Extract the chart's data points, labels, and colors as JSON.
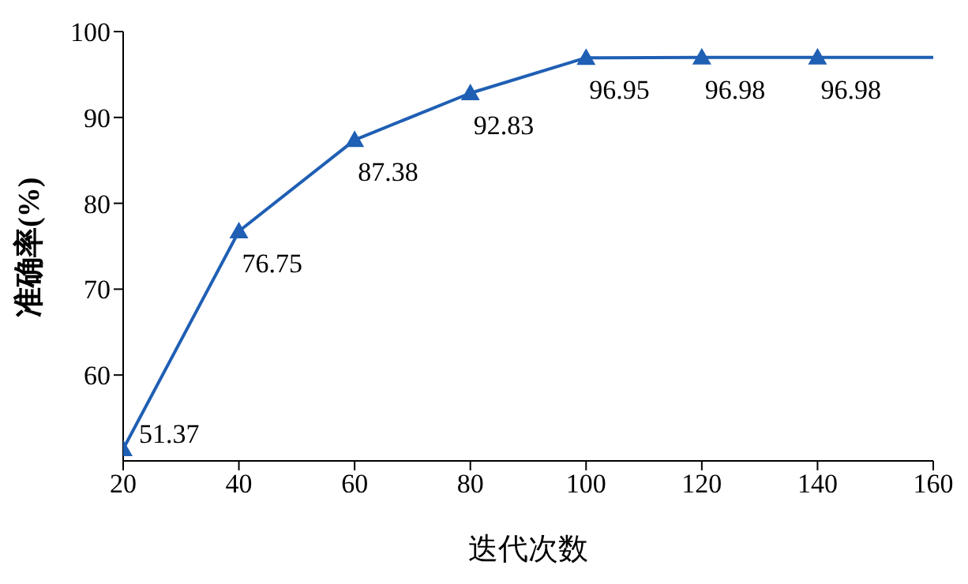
{
  "chart_data": {
    "type": "line",
    "xlabel": "迭代次数",
    "ylabel": "准确率(%)",
    "x": [
      20,
      40,
      60,
      80,
      100,
      120,
      140,
      160
    ],
    "series": [
      {
        "color": "#1f5fb4",
        "values": [
          51.37,
          76.75,
          87.38,
          92.83,
          96.95,
          96.98,
          96.98,
          96.98
        ],
        "value_labels": [
          "51.37",
          "76.75",
          "87.38",
          "92.83",
          "96.95",
          "96.98",
          "96.98",
          null
        ]
      }
    ],
    "xlim": [
      20,
      160
    ],
    "xticks": [
      20,
      40,
      60,
      80,
      100,
      120,
      140,
      160
    ],
    "ylim": [
      50,
      100
    ],
    "yticks": [
      60,
      70,
      80,
      90,
      100
    ],
    "marker": "triangle",
    "line_style": "solid",
    "grid": false
  }
}
